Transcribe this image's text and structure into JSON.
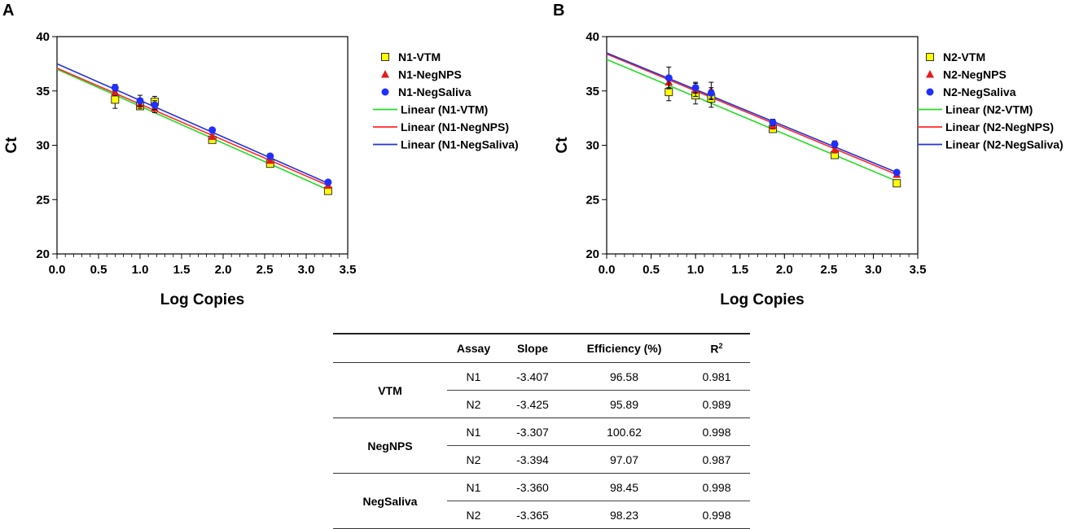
{
  "chart_data": [
    {
      "type": "scatter",
      "panel": "A",
      "xlabel": "Log Copies",
      "ylabel": "Ct",
      "xlim": [
        0,
        3.5
      ],
      "ylim": [
        20,
        40
      ],
      "xticks": [
        "0.0",
        "0.5",
        "1.0",
        "1.5",
        "2.0",
        "2.5",
        "3.0",
        "3.5"
      ],
      "yticks": [
        "20",
        "25",
        "30",
        "35",
        "40"
      ],
      "series": [
        {
          "name": "N1-VTM",
          "marker": "square",
          "color": "#ffff00",
          "x": [
            0.699,
            1.0,
            1.176,
            1.869,
            2.566,
            3.264
          ],
          "y": [
            34.2,
            33.6,
            34.0,
            30.5,
            28.3,
            25.8
          ],
          "err": [
            0.8,
            0.3,
            0.5,
            0.2,
            0.2,
            0.2
          ]
        },
        {
          "name": "N1-NegNPS",
          "marker": "triangle",
          "color": "#e31a1c",
          "x": [
            0.699,
            1.0,
            1.176,
            1.869,
            2.566,
            3.264
          ],
          "y": [
            34.9,
            33.8,
            33.4,
            30.8,
            28.6,
            26.3
          ],
          "err": [
            0.3,
            0.4,
            0.4,
            0.2,
            0.2,
            0.2
          ]
        },
        {
          "name": "N1-NegSaliva",
          "marker": "circle",
          "color": "#1f2fff",
          "x": [
            0.699,
            1.0,
            1.176,
            1.869,
            2.566,
            3.264
          ],
          "y": [
            35.3,
            34.1,
            33.7,
            31.4,
            29.0,
            26.6
          ],
          "err": [
            0.3,
            0.5,
            0.4,
            0.2,
            0.2,
            0.2
          ]
        },
        {
          "name": "Linear (N1-VTM)",
          "line": true,
          "color": "#22dd22",
          "x": [
            0,
            3.264
          ],
          "y": [
            37.0,
            25.9
          ]
        },
        {
          "name": "Linear (N1-NegNPS)",
          "line": true,
          "color": "#ff2a2a",
          "x": [
            0,
            3.264
          ],
          "y": [
            37.1,
            26.3
          ]
        },
        {
          "name": "Linear (N1-NegSaliva)",
          "line": true,
          "color": "#2233dd",
          "x": [
            0,
            3.264
          ],
          "y": [
            37.5,
            26.5
          ]
        }
      ]
    },
    {
      "type": "scatter",
      "panel": "B",
      "xlabel": "Log Copies",
      "ylabel": "Ct",
      "xlim": [
        0,
        3.5
      ],
      "ylim": [
        20,
        40
      ],
      "xticks": [
        "0.0",
        "0.5",
        "1.0",
        "1.5",
        "2.0",
        "2.5",
        "3.0",
        "3.5"
      ],
      "yticks": [
        "20",
        "25",
        "30",
        "35",
        "40"
      ],
      "series": [
        {
          "name": "N2-VTM",
          "marker": "square",
          "color": "#ffff00",
          "x": [
            0.699,
            1.0,
            1.176,
            1.869,
            2.566,
            3.264
          ],
          "y": [
            34.9,
            34.6,
            34.3,
            31.5,
            29.1,
            26.5
          ],
          "err": [
            0.8,
            0.8,
            0.8,
            0.3,
            0.3,
            0.2
          ]
        },
        {
          "name": "N2-NegNPS",
          "marker": "triangle",
          "color": "#e31a1c",
          "x": [
            0.699,
            1.0,
            1.176,
            1.869,
            2.566,
            3.264
          ],
          "y": [
            35.8,
            35.1,
            35.0,
            31.8,
            29.6,
            27.3
          ],
          "err": [
            0.5,
            0.6,
            0.8,
            0.3,
            0.3,
            0.2
          ]
        },
        {
          "name": "N2-NegSaliva",
          "marker": "circle",
          "color": "#1f2fff",
          "x": [
            0.699,
            1.0,
            1.176,
            1.869,
            2.566,
            3.264
          ],
          "y": [
            36.2,
            35.3,
            34.8,
            32.1,
            30.1,
            27.5
          ],
          "err": [
            1.0,
            0.5,
            0.5,
            0.3,
            0.3,
            0.2
          ]
        },
        {
          "name": "Linear (N2-VTM)",
          "line": true,
          "color": "#22dd22",
          "x": [
            0,
            3.264
          ],
          "y": [
            37.9,
            26.7
          ]
        },
        {
          "name": "Linear (N2-NegNPS)",
          "line": true,
          "color": "#ff2a2a",
          "x": [
            0,
            3.264
          ],
          "y": [
            38.4,
            27.3
          ]
        },
        {
          "name": "Linear (N2-NegSaliva)",
          "line": true,
          "color": "#2233dd",
          "x": [
            0,
            3.264
          ],
          "y": [
            38.5,
            27.5
          ]
        }
      ]
    }
  ],
  "panels": {
    "a_letter": "A",
    "b_letter": "B"
  },
  "table": {
    "headers": {
      "assay": "Assay",
      "slope": "Slope",
      "efficiency": "Efficiency (%)",
      "r2": "R",
      "r2_sup": "2"
    },
    "groups": [
      {
        "name": "VTM",
        "rows": [
          {
            "assay": "N1",
            "slope": "-3.407",
            "efficiency": "96.58",
            "r2": "0.981"
          },
          {
            "assay": "N2",
            "slope": "-3.425",
            "efficiency": "95.89",
            "r2": "0.989"
          }
        ]
      },
      {
        "name": "NegNPS",
        "rows": [
          {
            "assay": "N1",
            "slope": "-3.307",
            "efficiency": "100.62",
            "r2": "0.998"
          },
          {
            "assay": "N2",
            "slope": "-3.394",
            "efficiency": "97.07",
            "r2": "0.987"
          }
        ]
      },
      {
        "name": "NegSaliva",
        "rows": [
          {
            "assay": "N1",
            "slope": "-3.360",
            "efficiency": "98.45",
            "r2": "0.998"
          },
          {
            "assay": "N2",
            "slope": "-3.365",
            "efficiency": "98.23",
            "r2": "0.998"
          }
        ]
      }
    ]
  }
}
